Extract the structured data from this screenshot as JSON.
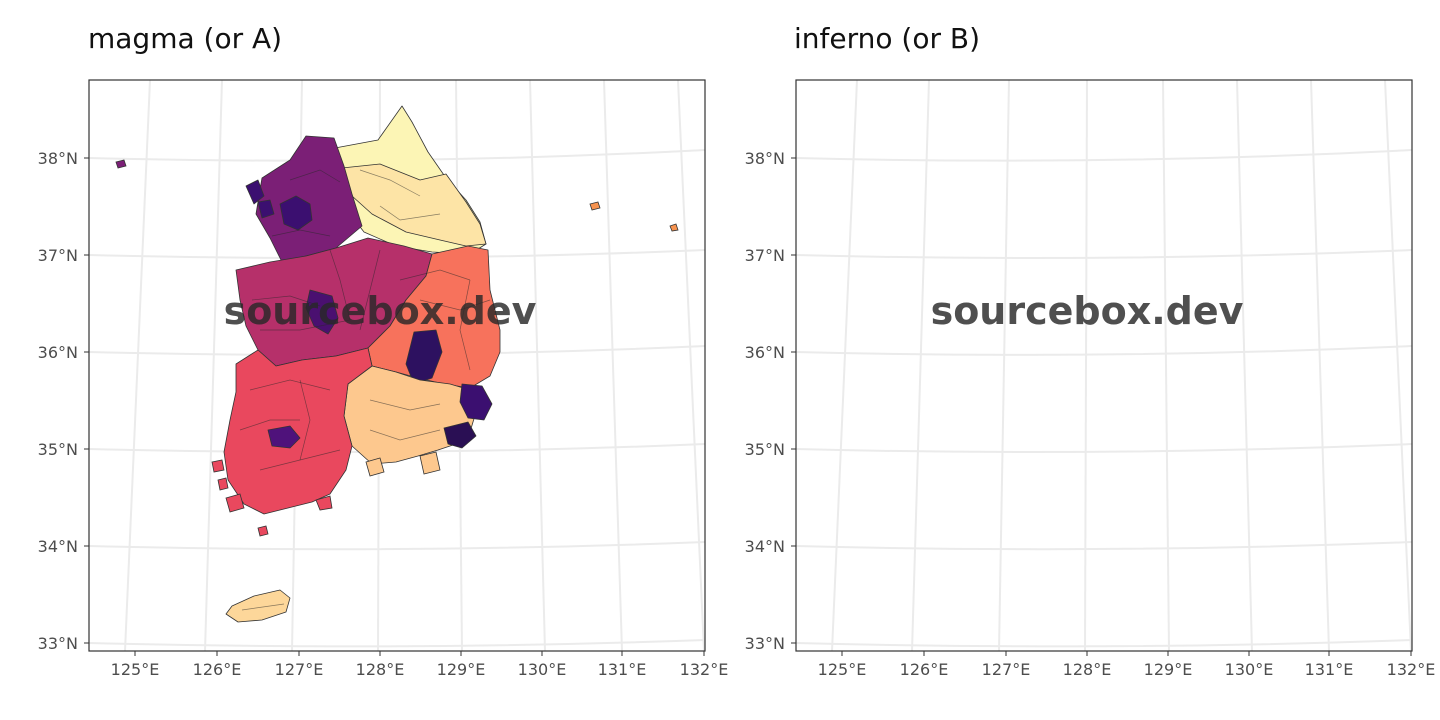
{
  "panels": [
    {
      "title": "magma (or A)",
      "watermark": "sourcebox.dev",
      "palette": {
        "capital": "#7b1f76",
        "seoul": "#3b0f70",
        "gangwon": "#fcf5b5",
        "gangwon_south": "#fde4a6",
        "chungcheong": "#b6306a",
        "daejeon": "#4a1070",
        "gyeongbuk": "#f7725c",
        "daegu": "#2d1160",
        "gyeongnam": "#fdc88e",
        "busan": "#2a0f54",
        "ulsan": "#3b0f70",
        "jeolla": "#e9485e",
        "gwangju": "#4f127b",
        "jeju": "#fdd79a",
        "dokdo": "#f7934f"
      }
    },
    {
      "title": "inferno (or B)",
      "watermark": "sourcebox.dev",
      "palette": {
        "capital": "#7c1d49",
        "seoul": "#2b0b4e",
        "gangwon": "#f5f68a",
        "gangwon_south": "#eee766",
        "chungcheong": "#a22a3e",
        "daejeon": "#3a0d62",
        "gyeongbuk": "#f48918",
        "daegu": "#2d0a5e",
        "gyeongnam": "#f0d042",
        "busan": "#1f0c48",
        "ulsan": "#540b6a",
        "jeolla": "#e4561b",
        "gwangju": "#33105b",
        "jeju": "#ebdc48",
        "dokdo": "#f0a81c"
      }
    }
  ],
  "axes": {
    "x_ticks": [
      "125°E",
      "126°E",
      "127°E",
      "128°E",
      "129°E",
      "130°E",
      "131°E",
      "132°E"
    ],
    "y_ticks": [
      "38°N",
      "37°N",
      "36°N",
      "35°N",
      "34°N",
      "33°N"
    ]
  }
}
